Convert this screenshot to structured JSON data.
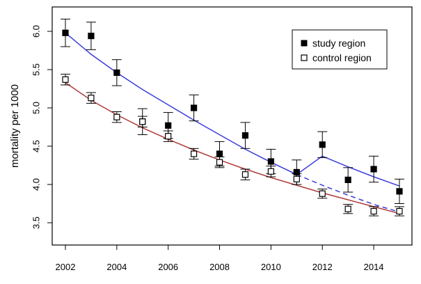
{
  "chart_data": {
    "type": "scatter",
    "title": "",
    "xlabel": "",
    "ylabel": "mortality per 1000",
    "xlim": [
      2002,
      2015
    ],
    "ylim": [
      3.5,
      6.0
    ],
    "x_ticks": [
      2002,
      2004,
      2006,
      2008,
      2010,
      2012,
      2014
    ],
    "y_ticks": [
      3.5,
      4.0,
      4.5,
      5.0,
      5.5,
      6.0
    ],
    "grid": false,
    "legend": {
      "placement": "top-right",
      "entries": [
        "study region",
        "control region"
      ]
    },
    "series": [
      {
        "name": "study region",
        "marker": "filled-square",
        "x": [
          2002,
          2003,
          2004,
          2005,
          2006,
          2007,
          2008,
          2009,
          2010,
          2011,
          2012,
          2013,
          2014,
          2015
        ],
        "y": [
          5.98,
          5.94,
          5.46,
          4.82,
          4.77,
          5.0,
          4.4,
          4.64,
          4.3,
          4.16,
          4.52,
          4.06,
          4.2,
          3.91
        ],
        "err": [
          0.18,
          0.18,
          0.17,
          0.17,
          0.17,
          0.17,
          0.16,
          0.17,
          0.16,
          0.16,
          0.17,
          0.16,
          0.17,
          0.16
        ]
      },
      {
        "name": "control region",
        "marker": "open-square",
        "x": [
          2002,
          2003,
          2004,
          2005,
          2006,
          2007,
          2008,
          2009,
          2010,
          2011,
          2012,
          2013,
          2014,
          2015
        ],
        "y": [
          5.37,
          5.13,
          4.88,
          4.82,
          4.63,
          4.4,
          4.29,
          4.13,
          4.17,
          4.07,
          3.88,
          3.68,
          3.65,
          3.65
        ],
        "err": [
          0.07,
          0.07,
          0.07,
          0.07,
          0.07,
          0.07,
          0.07,
          0.07,
          0.07,
          0.07,
          0.06,
          0.06,
          0.06,
          0.06
        ]
      }
    ],
    "fitted_lines": [
      {
        "name": "study trend",
        "color": "#3b3bdd",
        "style": "solid",
        "x": [
          2002,
          2003,
          2004,
          2005,
          2006,
          2007,
          2008,
          2009,
          2010,
          2011,
          2012,
          2013,
          2014,
          2015
        ],
        "y": [
          5.98,
          5.7,
          5.46,
          5.24,
          5.04,
          4.84,
          4.65,
          4.46,
          4.29,
          4.13,
          4.37,
          4.23,
          4.1,
          3.98
        ]
      },
      {
        "name": "study counterfactual",
        "color": "#3b3bdd",
        "style": "dashed",
        "x": [
          2011,
          2012,
          2013,
          2014,
          2015
        ],
        "y": [
          4.13,
          3.99,
          3.86,
          3.74,
          3.64
        ]
      },
      {
        "name": "control trend",
        "color": "#b03a3a",
        "style": "solid",
        "x": [
          2002,
          2003,
          2004,
          2005,
          2006,
          2007,
          2008,
          2009,
          2010,
          2011,
          2012,
          2013,
          2014,
          2015
        ],
        "y": [
          5.33,
          5.1,
          4.91,
          4.74,
          4.59,
          4.45,
          4.32,
          4.2,
          4.09,
          3.99,
          3.89,
          3.8,
          3.71,
          3.62
        ]
      }
    ]
  }
}
